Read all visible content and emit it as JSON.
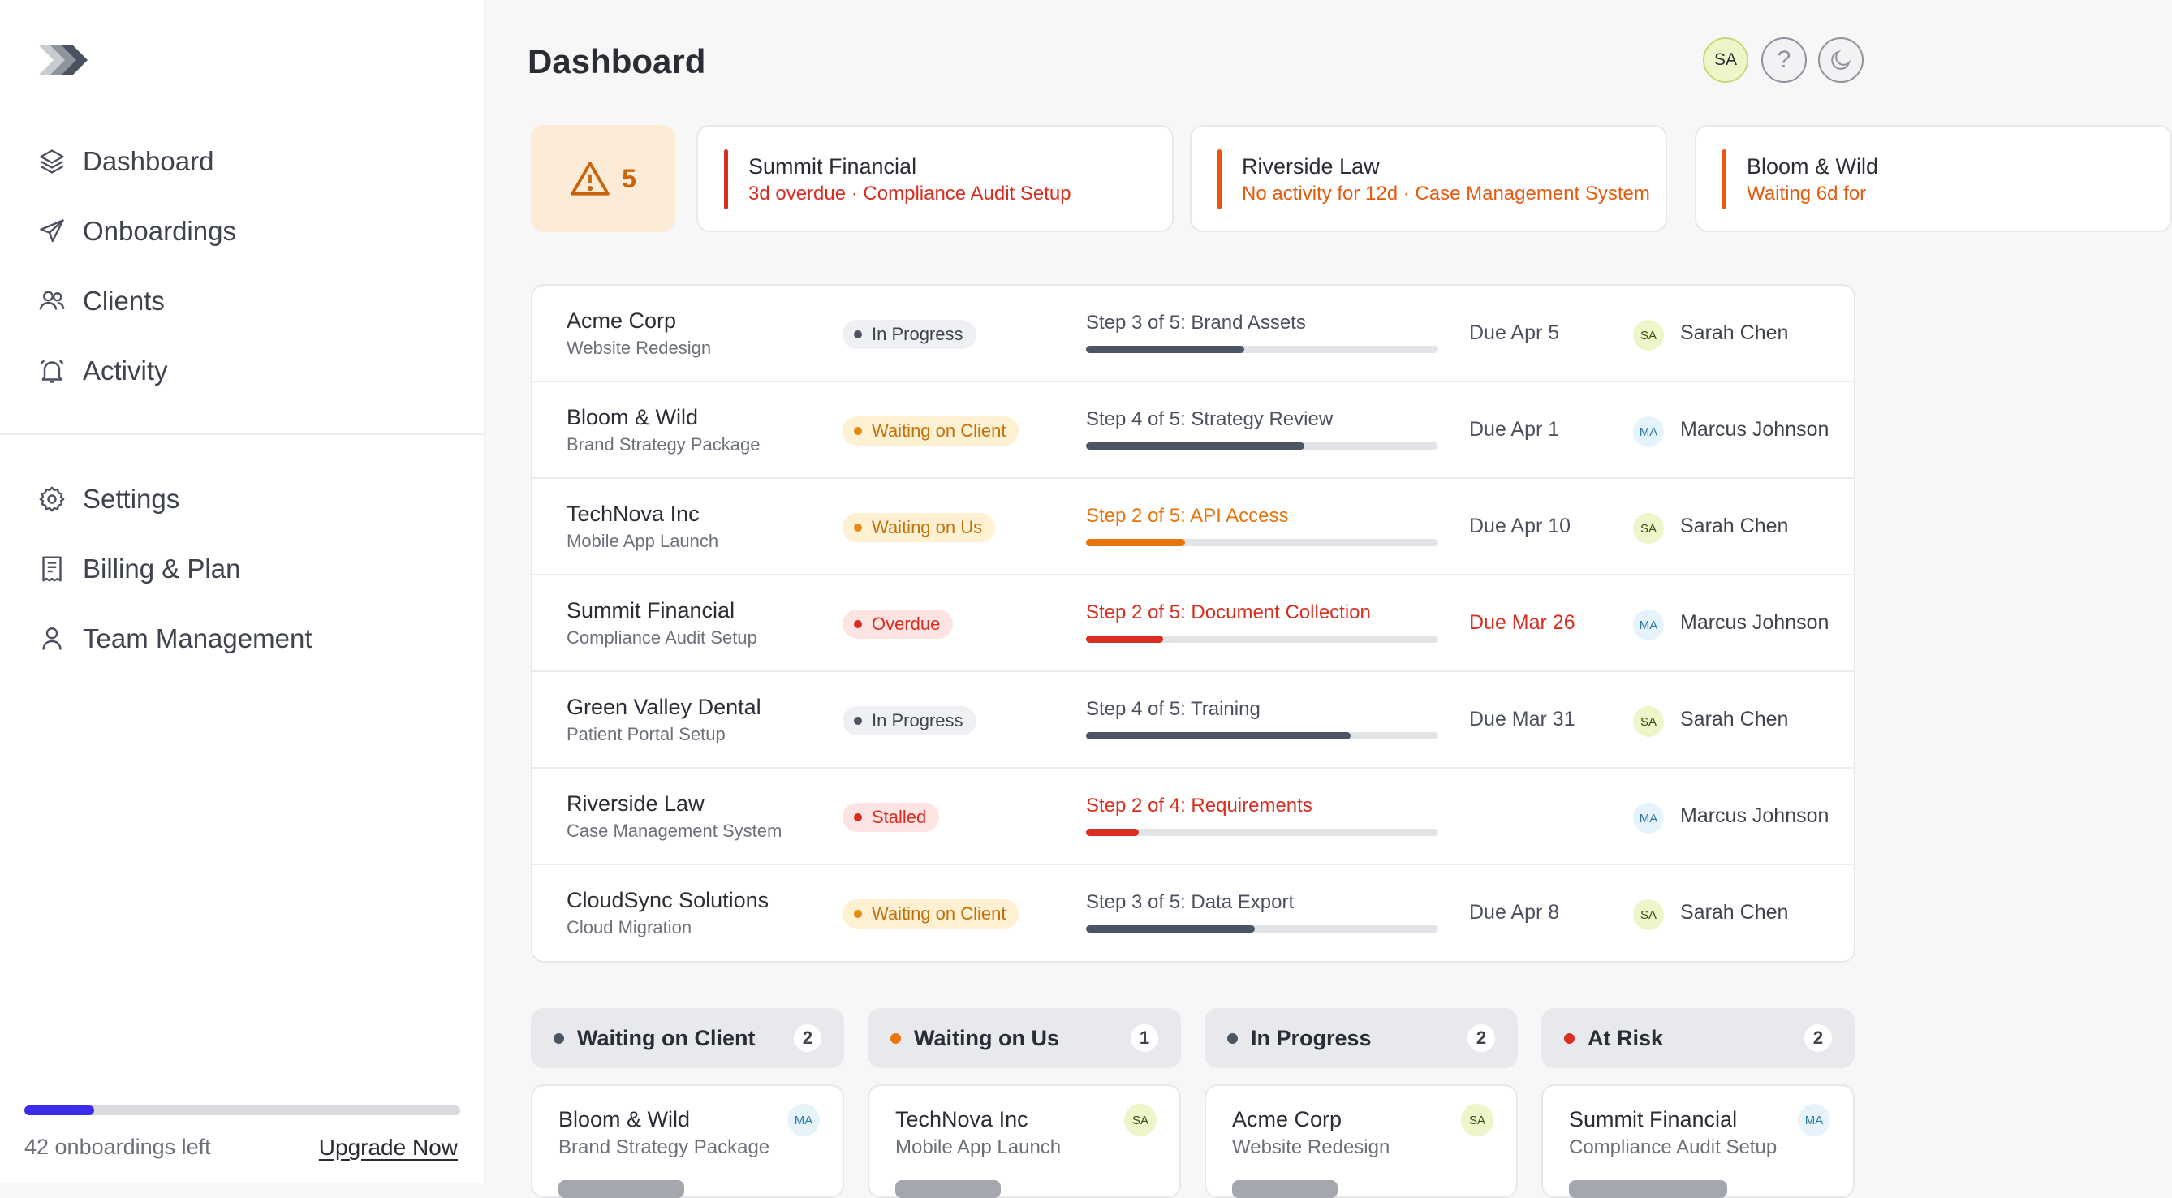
{
  "sidebar": {
    "logo_icon": "chevrons-logo-icon",
    "nav": [
      {
        "label": "Dashboard",
        "icon": "layers-icon"
      },
      {
        "label": "Onboardings",
        "icon": "send-icon"
      },
      {
        "label": "Clients",
        "icon": "users-icon"
      },
      {
        "label": "Activity",
        "icon": "bell-icon"
      }
    ],
    "nav2": [
      {
        "label": "Settings",
        "icon": "gear-icon"
      },
      {
        "label": "Billing & Plan",
        "icon": "receipt-icon"
      },
      {
        "label": "Team Management",
        "icon": "user-icon"
      }
    ],
    "usage": {
      "text": "42 onboardings left",
      "progress": 0.16
    },
    "upgrade_label": "Upgrade Now"
  },
  "header": {
    "title": "Dashboard",
    "avatar": "SA",
    "help_glyph": "?"
  },
  "alerts": {
    "count": "5",
    "items": [
      {
        "title": "Summit Financial",
        "detail": "3d overdue · Compliance Audit Setup",
        "color": "#d92d20"
      },
      {
        "title": "Riverside Law",
        "detail": "No activity for 12d · Case Management System",
        "color": "#e8590c"
      },
      {
        "title": "Bloom & Wild",
        "detail": "Waiting 6d for",
        "color": "#e8590c"
      }
    ]
  },
  "table": {
    "rows": [
      {
        "client": "Acme Corp",
        "project": "Website Redesign",
        "status": "In Progress",
        "step": "Step 3 of 5: Brand Assets",
        "progress": 0.45,
        "due": "Due Apr 5",
        "owner_initials": "SA",
        "owner": "Sarah Chen"
      },
      {
        "client": "Bloom & Wild",
        "project": "Brand Strategy Package",
        "status": "Waiting on Client",
        "step": "Step 4 of 5: Strategy Review",
        "progress": 0.62,
        "due": "Due Apr 1",
        "owner_initials": "MA",
        "owner": "Marcus Johnson"
      },
      {
        "client": "TechNova Inc",
        "project": "Mobile App Launch",
        "status": "Waiting on Us",
        "step": "Step 2 of 5: API Access",
        "progress": 0.28,
        "due": "Due Apr 10",
        "owner_initials": "SA",
        "owner": "Sarah Chen"
      },
      {
        "client": "Summit Financial",
        "project": "Compliance Audit Setup",
        "status": "Overdue",
        "step": "Step 2 of 5: Document Collection",
        "progress": 0.22,
        "due": "Due Mar 26",
        "owner_initials": "MA",
        "owner": "Marcus Johnson"
      },
      {
        "client": "Green Valley Dental",
        "project": "Patient Portal Setup",
        "status": "In Progress",
        "step": "Step 4 of 5: Training",
        "progress": 0.75,
        "due": "Due Mar 31",
        "owner_initials": "SA",
        "owner": "Sarah Chen"
      },
      {
        "client": "Riverside Law",
        "project": "Case Management System",
        "status": "Stalled",
        "step": "Step 2 of 4: Requirements",
        "progress": 0.15,
        "due": "",
        "owner_initials": "MA",
        "owner": "Marcus Johnson"
      },
      {
        "client": "CloudSync Solutions",
        "project": "Cloud Migration",
        "status": "Waiting on Client",
        "step": "Step 3 of 5: Data Export",
        "progress": 0.48,
        "due": "Due Apr 8",
        "owner_initials": "SA",
        "owner": "Sarah Chen"
      }
    ]
  },
  "status_styles": {
    "In Progress": {
      "bg": "#eef0f3",
      "dot": "#4b5563",
      "text": "#3e434d",
      "step": "#4b5160",
      "due": "#4b5160",
      "fill": "#4b5563"
    },
    "Waiting on Client": {
      "bg": "#fdf1d2",
      "dot": "#e8890c",
      "text": "#c2700a",
      "step": "#4b5160",
      "due": "#4b5160",
      "fill": "#4b5563"
    },
    "Waiting on Us": {
      "bg": "#fdf1d2",
      "dot": "#e8890c",
      "text": "#c2700a",
      "step": "#e8750c",
      "due": "#4b5160",
      "fill": "#e8750c"
    },
    "Overdue": {
      "bg": "#fde4e2",
      "dot": "#d92d20",
      "text": "#d92d20",
      "step": "#d92d20",
      "due": "#d92d20",
      "fill": "#d92d20"
    },
    "Stalled": {
      "bg": "#fde4e2",
      "dot": "#d92d20",
      "text": "#d92d20",
      "step": "#d92d20",
      "due": "#d92d20",
      "fill": "#d92d20"
    }
  },
  "kanban": [
    {
      "label": "Waiting on Client",
      "count": "2",
      "dot": "#4b5563",
      "card": {
        "client": "Bloom & Wild",
        "project": "Brand Strategy Package",
        "initials": "MA",
        "pill": 0.5
      }
    },
    {
      "label": "Waiting on Us",
      "count": "1",
      "dot": "#e8750c",
      "card": {
        "client": "TechNova Inc",
        "project": "Mobile App Launch",
        "initials": "SA",
        "pill": 0.42
      }
    },
    {
      "label": "In Progress",
      "count": "2",
      "dot": "#4b5563",
      "card": {
        "client": "Acme Corp",
        "project": "Website Redesign",
        "initials": "SA",
        "pill": 0.42
      }
    },
    {
      "label": "At Risk",
      "count": "2",
      "dot": "#d92d20",
      "card": {
        "client": "Summit Financial",
        "project": "Compliance Audit Setup",
        "initials": "MA",
        "pill": 0.63
      }
    }
  ]
}
